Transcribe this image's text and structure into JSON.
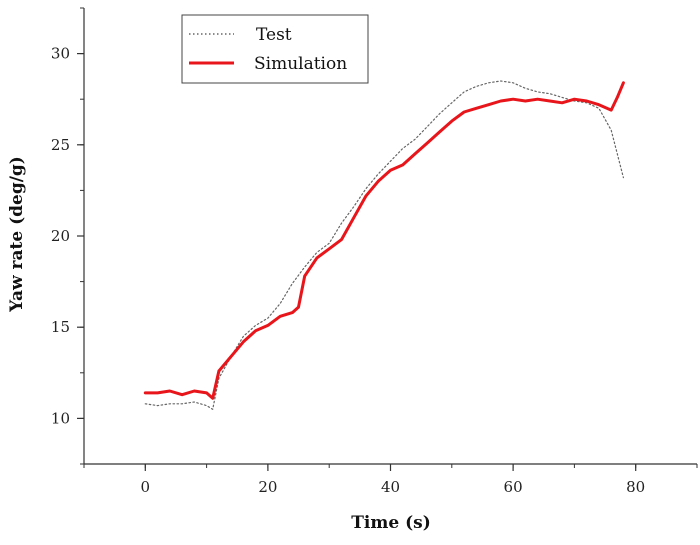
{
  "chart_data": {
    "type": "line",
    "title": "",
    "xlabel": "Time (s)",
    "ylabel": "Yaw rate (deg/g)",
    "xlim": [
      -10,
      90
    ],
    "ylim": [
      7.5,
      32.5
    ],
    "x_ticks": [
      0,
      20,
      40,
      60,
      80
    ],
    "y_ticks": [
      10,
      15,
      20,
      25,
      30
    ],
    "x_tick_labels": [
      "0",
      "20",
      "40",
      "60",
      "80"
    ],
    "y_tick_labels": [
      "10",
      "15",
      "20",
      "25",
      "30"
    ],
    "grid": false,
    "legend_position": "top-left",
    "series": [
      {
        "name": "Test",
        "color": "#666666",
        "style": "dotted",
        "x": [
          0,
          2,
          4,
          6,
          8,
          10,
          11,
          12,
          14,
          16,
          18,
          20,
          22,
          24,
          26,
          28,
          30,
          32,
          34,
          36,
          38,
          40,
          42,
          44,
          46,
          48,
          50,
          52,
          54,
          56,
          58,
          60,
          62,
          64,
          66,
          68,
          70,
          72,
          74,
          76,
          77,
          78
        ],
        "y": [
          10.8,
          10.7,
          10.8,
          10.8,
          10.9,
          10.7,
          10.5,
          12.2,
          13.4,
          14.5,
          15.1,
          15.5,
          16.3,
          17.4,
          18.3,
          19.1,
          19.6,
          20.7,
          21.6,
          22.6,
          23.4,
          24.1,
          24.8,
          25.3,
          26.0,
          26.7,
          27.3,
          27.9,
          28.2,
          28.4,
          28.5,
          28.4,
          28.1,
          27.9,
          27.8,
          27.6,
          27.4,
          27.3,
          27.0,
          25.8,
          24.5,
          23.2
        ]
      },
      {
        "name": "Simulation",
        "color": "#e8151b",
        "style": "solid",
        "x": [
          0,
          2,
          4,
          6,
          8,
          10,
          11,
          12,
          14,
          16,
          18,
          20,
          22,
          24,
          25,
          26,
          28,
          30,
          32,
          34,
          36,
          38,
          40,
          42,
          44,
          46,
          48,
          50,
          52,
          54,
          56,
          58,
          60,
          62,
          64,
          66,
          68,
          70,
          72,
          74,
          76,
          77,
          78
        ],
        "y": [
          11.4,
          11.4,
          11.5,
          11.3,
          11.5,
          11.4,
          11.1,
          12.6,
          13.4,
          14.2,
          14.8,
          15.1,
          15.6,
          15.8,
          16.1,
          17.8,
          18.8,
          19.3,
          19.8,
          21.0,
          22.2,
          23.0,
          23.6,
          23.9,
          24.5,
          25.1,
          25.7,
          26.3,
          26.8,
          27.0,
          27.2,
          27.4,
          27.5,
          27.4,
          27.5,
          27.4,
          27.3,
          27.5,
          27.4,
          27.2,
          26.9,
          27.6,
          28.4
        ]
      }
    ]
  }
}
